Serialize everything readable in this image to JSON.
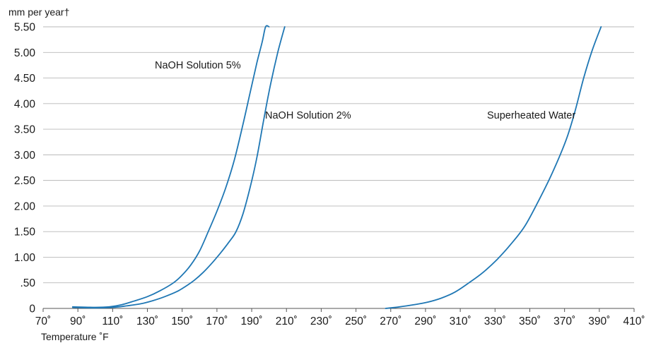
{
  "chart_data": {
    "type": "line",
    "ylabel": "mm per year†",
    "xlabel": "Temperature ˚F",
    "xlim": [
      70,
      410
    ],
    "ylim": [
      0,
      5.5
    ],
    "x_ticks": [
      70,
      90,
      110,
      130,
      150,
      170,
      190,
      210,
      230,
      250,
      270,
      290,
      310,
      330,
      350,
      370,
      390,
      410
    ],
    "x_tick_labels": [
      "70˚",
      "90˚",
      "110˚",
      "130˚",
      "150˚",
      "170˚",
      "190˚",
      "210˚",
      "230˚",
      "250˚",
      "270˚",
      "290˚",
      "310˚",
      "330˚",
      "350˚",
      "370˚",
      "390˚",
      "410˚"
    ],
    "y_ticks": [
      0,
      0.5,
      1.0,
      1.5,
      2.0,
      2.5,
      3.0,
      3.5,
      4.0,
      4.5,
      5.0,
      5.5
    ],
    "y_tick_labels": [
      "0",
      ".50",
      "1.00",
      "1.50",
      "2.00",
      "2.50",
      "3.00",
      "3.50",
      "4.00",
      "4.50",
      "5.00",
      "5.50"
    ],
    "grid": "horizontal",
    "line_color": "#1f77b4",
    "series": [
      {
        "name": "NaOH Solution 5%",
        "x": [
          87,
          100,
          108,
          115,
          122,
          130,
          137,
          145,
          150,
          155,
          160,
          165,
          170,
          175,
          180,
          185,
          189,
          193,
          196,
          198,
          200
        ],
        "y": [
          0.03,
          0.02,
          0.03,
          0.07,
          0.14,
          0.23,
          0.34,
          0.5,
          0.65,
          0.85,
          1.12,
          1.5,
          1.9,
          2.35,
          2.9,
          3.6,
          4.2,
          4.8,
          5.2,
          5.5,
          5.5
        ]
      },
      {
        "name": "NaOH Solution 2%",
        "x": [
          87,
          100,
          110,
          118,
          126,
          133,
          140,
          147,
          152,
          157,
          162,
          167,
          172,
          177,
          181,
          185,
          189,
          193,
          197,
          201,
          205,
          209
        ],
        "y": [
          0.02,
          0.01,
          0.02,
          0.05,
          0.09,
          0.15,
          0.23,
          0.33,
          0.43,
          0.55,
          0.7,
          0.88,
          1.08,
          1.3,
          1.5,
          1.85,
          2.35,
          2.95,
          3.7,
          4.4,
          5.0,
          5.5
        ]
      },
      {
        "name": "Superheated Water",
        "x": [
          267,
          275,
          283,
          291,
          299,
          307,
          315,
          323,
          331,
          339,
          347,
          355,
          363,
          371,
          376,
          381,
          386,
          391
        ],
        "y": [
          0.0,
          0.03,
          0.07,
          0.12,
          0.2,
          0.32,
          0.5,
          0.7,
          0.95,
          1.25,
          1.6,
          2.1,
          2.65,
          3.3,
          3.85,
          4.5,
          5.05,
          5.5
        ]
      }
    ],
    "annotations": [
      {
        "text": "NaOH Solution 5%",
        "series": 0
      },
      {
        "text": "NaOH Solution 2%",
        "series": 1
      },
      {
        "text": "Superheated Water",
        "series": 2
      }
    ]
  }
}
